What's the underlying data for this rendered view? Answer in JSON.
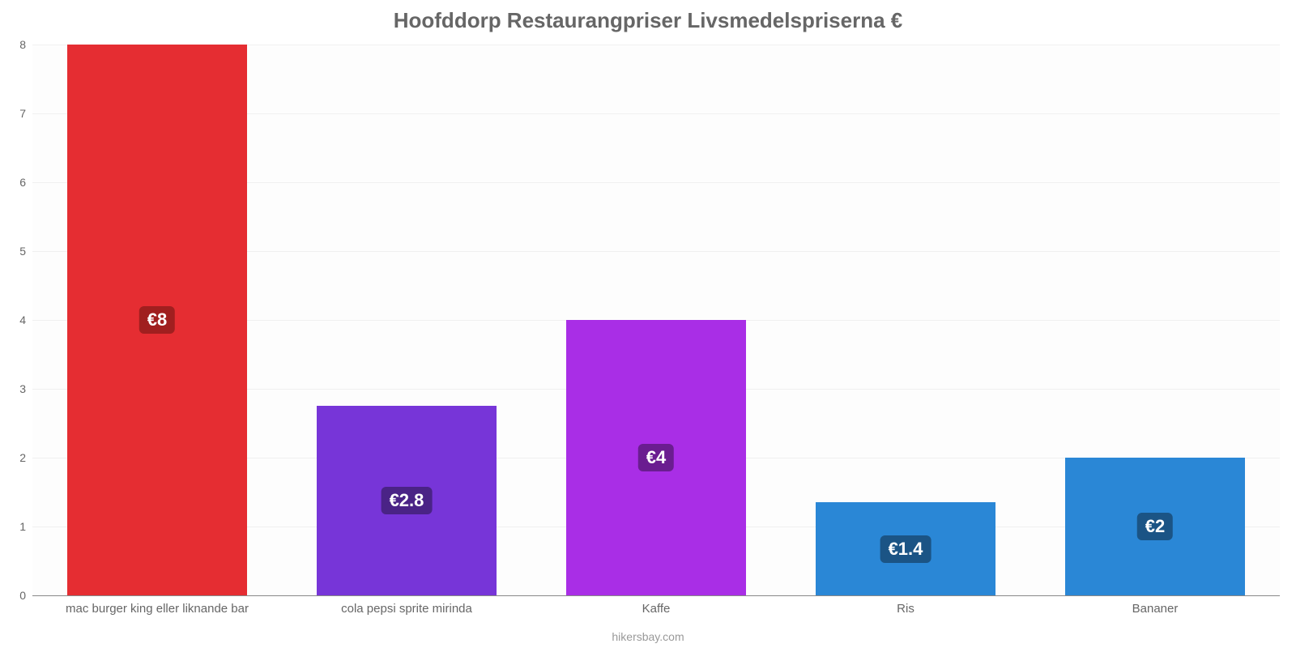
{
  "chart": {
    "type": "bar",
    "title": "Hoofddorp Restaurangpriser Livsmedelspriserna €",
    "title_fontsize": 26,
    "title_color": "#666666",
    "source": "hikersbay.com",
    "source_fontsize": 14,
    "background_color": "#ffffff",
    "plot_bg_color": "#fdfdfd",
    "grid_color": "#f0f0f0",
    "axis_color": "#888888",
    "tick_label_color": "#666666",
    "ylim_min": 0,
    "ylim_max": 8,
    "ytick_step": 1,
    "yticks": [
      0,
      1,
      2,
      3,
      4,
      5,
      6,
      7,
      8
    ],
    "bar_width_ratio": 0.72,
    "value_label_fontsize": 22,
    "value_label_text_color": "#ffffff",
    "categories": [
      {
        "label": "mac burger king eller liknande bar",
        "value": 8,
        "value_label": "€8",
        "bar_color": "#e52d32",
        "badge_bg": "#a01f1f"
      },
      {
        "label": "cola pepsi sprite mirinda",
        "value": 2.75,
        "value_label": "€2.8",
        "bar_color": "#7735d8",
        "badge_bg": "#4a2386"
      },
      {
        "label": "Kaffe",
        "value": 4,
        "value_label": "€4",
        "bar_color": "#a92ee6",
        "badge_bg": "#6a1d90"
      },
      {
        "label": "Ris",
        "value": 1.35,
        "value_label": "€1.4",
        "bar_color": "#2a87d6",
        "badge_bg": "#1b5485"
      },
      {
        "label": "Bananer",
        "value": 2,
        "value_label": "€2",
        "bar_color": "#2a87d6",
        "badge_bg": "#1b5485"
      }
    ]
  }
}
